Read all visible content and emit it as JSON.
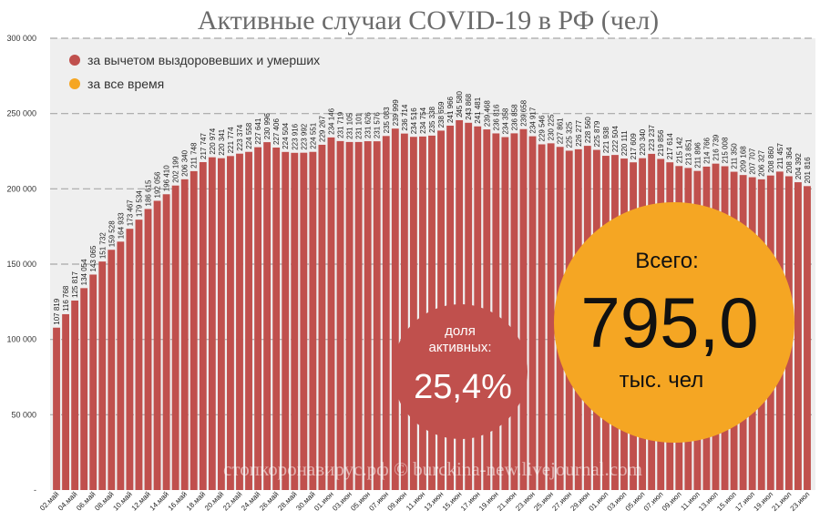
{
  "chart_data": {
    "type": "bar",
    "title": "Активные случаи COVID-19 в РФ (чел)",
    "ylim": [
      0,
      300000
    ],
    "yticks": [
      "-",
      "50 000",
      "100 000",
      "150 000",
      "200 000",
      "250 000",
      "300 000"
    ],
    "ytick_values": [
      0,
      50000,
      100000,
      150000,
      200000,
      250000,
      300000
    ],
    "grid": "horizontal dashed",
    "legend_position": "top-left",
    "legend": [
      {
        "label": "за вычетом выздоровевших и умерших",
        "color": "#c0504d"
      },
      {
        "label": "за все время",
        "color": "#f5a623"
      }
    ],
    "series": [
      {
        "name": "за вычетом выздоровевших и умерших",
        "color": "#c0504d",
        "values": [
          107819,
          116768,
          125817,
          134054,
          143065,
          151732,
          159528,
          164933,
          173467,
          179534,
          186615,
          192056,
          196410,
          202199,
          206340,
          211748,
          217747,
          220974,
          220341,
          221774,
          223374,
          224558,
          227641,
          230996,
          227406,
          224504,
          223916,
          223992,
          224551,
          229267,
          234146,
          231719,
          231105,
          231101,
          231626,
          231576,
          235083,
          239999,
          236714,
          234516,
          234754,
          235338,
          238659,
          241966,
          245580,
          243868,
          241481,
          239468,
          236816,
          234358,
          236858,
          239658,
          234917,
          229546,
          230225,
          227861,
          225325,
          226277,
          228560,
          225879,
          221938,
          222504,
          220111,
          217609,
          220340,
          223237,
          219856,
          217614,
          215142,
          213851,
          211896,
          214766,
          216739,
          215008,
          211350,
          209168,
          207707,
          206327,
          208860,
          211457,
          208364,
          204392,
          201816
        ]
      }
    ],
    "categories": [
      "02.май",
      "",
      "04.май",
      "",
      "06.май",
      "",
      "08.май",
      "",
      "10.май",
      "",
      "12.май",
      "",
      "14.май",
      "",
      "16.май",
      "",
      "18.май",
      "",
      "20.май",
      "",
      "22.май",
      "",
      "24.май",
      "",
      "26.май",
      "",
      "28.май",
      "",
      "30.май",
      "",
      "01.июн",
      "",
      "03.июн",
      "",
      "05.июн",
      "",
      "07.июн",
      "",
      "09.июн",
      "",
      "11.июн",
      "",
      "13.июн",
      "",
      "15.июн",
      "",
      "17.июн",
      "",
      "19.июн",
      "",
      "21.июн",
      "",
      "23.июн",
      "",
      "25.июн",
      "",
      "27.июн",
      "",
      "29.июн",
      "",
      "01.июл",
      "",
      "03.июл",
      "",
      "05.июл",
      "",
      "07.июл",
      "",
      "09.июл",
      "",
      "11.июл",
      "",
      "13.июл",
      "",
      "15.июл",
      "",
      "17.июл",
      "",
      "19.июл",
      "",
      "21.июл",
      "",
      "23.июл"
    ],
    "value_labels": [
      "107 819",
      "116 768",
      "125 817",
      "134 054",
      "143 065",
      "151 732",
      "159 528",
      "164 933",
      "173 467",
      "179 534",
      "186 615",
      "192 056",
      "196 410",
      "202 199",
      "206 340",
      "211 748",
      "217 747",
      "220 974",
      "220 341",
      "221 774",
      "223 374",
      "224 558",
      "227 641",
      "230 996",
      "227 406",
      "224 504",
      "223 916",
      "223 992",
      "224 551",
      "229 267",
      "234 146",
      "231 719",
      "231 105",
      "231 101",
      "231 626",
      "231 576",
      "235 083",
      "239 999",
      "236 714",
      "234 516",
      "234 754",
      "235 338",
      "238 659",
      "241 966",
      "245 580",
      "243 868",
      "241 481",
      "239 468",
      "236 816",
      "234 358",
      "236 858",
      "239 658",
      "234 917",
      "229 546",
      "230 225",
      "227 861",
      "225 325",
      "226 277",
      "228 560",
      "225 879",
      "221 938",
      "222 504",
      "220 111",
      "217 609",
      "220 340",
      "223 237",
      "219 856",
      "217 614",
      "215 142",
      "213 851",
      "211 896",
      "214 766",
      "216 739",
      "215 008",
      "211 350",
      "209 168",
      "207 707",
      "206 327",
      "208 860",
      "211 457",
      "208 364",
      "204 392",
      "201 816"
    ]
  },
  "active_share": {
    "label_line1": "доля",
    "label_line2": "активных:",
    "value": "25,4%"
  },
  "total": {
    "label": "Всего:",
    "value": "795,0",
    "unit": "тыс. чел"
  },
  "watermark": "стопкоронавирус.рф © burckina-new.livejournal.com",
  "colors": {
    "bar": "#c0504d",
    "bar_dark": "#8e2c2a",
    "plot_bg": "#efefef",
    "total_circle": "#f5a623",
    "share_circle": "#c0504d"
  }
}
